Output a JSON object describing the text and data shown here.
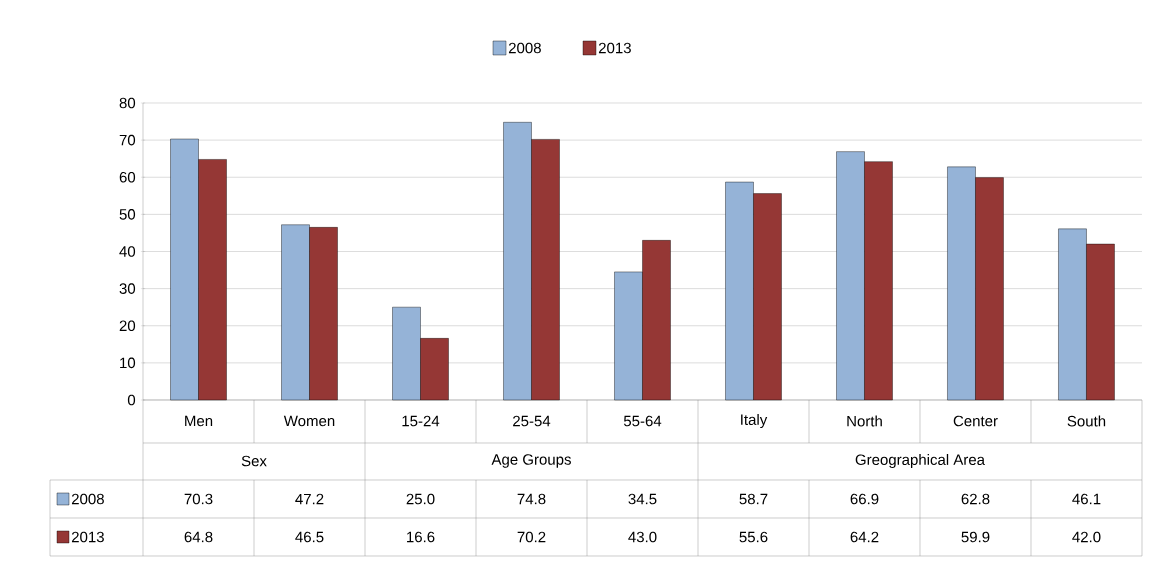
{
  "chart_data": {
    "type": "bar",
    "categories": [
      "Men",
      "Women",
      "15-24",
      "25-54",
      "55-64",
      "Italy",
      "North",
      "Center",
      "South"
    ],
    "series": [
      {
        "name": "2008",
        "color": "#95b3d7",
        "values": [
          70.3,
          47.2,
          25.0,
          74.8,
          34.5,
          58.7,
          66.9,
          62.8,
          46.1
        ],
        "value_labels": [
          "70.3",
          "47.2",
          "25.0",
          "74.8",
          "34.5",
          "58.7",
          "66.9",
          "62.8",
          "46.1"
        ]
      },
      {
        "name": "2013",
        "color": "#953735",
        "values": [
          64.8,
          46.5,
          16.6,
          70.2,
          43.0,
          55.6,
          64.2,
          59.9,
          42.0
        ],
        "value_labels": [
          "64.8",
          "46.5",
          "16.6",
          "70.2",
          "43.0",
          "55.6",
          "64.2",
          "59.9",
          "42.0"
        ]
      }
    ],
    "annotations": [
      "Sex",
      "Age Groups",
      "Greographical Area"
    ],
    "ylim": [
      0,
      80
    ],
    "yticks": [
      0,
      10,
      20,
      30,
      40,
      50,
      60,
      70,
      80
    ],
    "grid": "y",
    "legend": "top"
  }
}
